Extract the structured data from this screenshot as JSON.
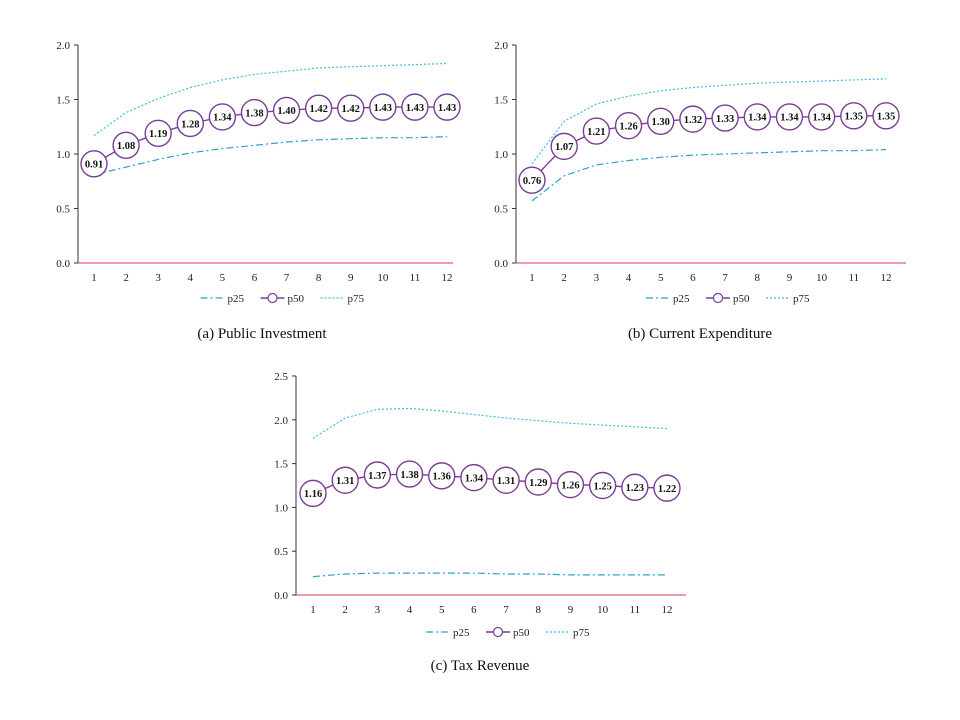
{
  "chart_data": [
    {
      "type": "line",
      "caption": "(a)  Public Investment",
      "x": [
        1,
        2,
        3,
        4,
        5,
        6,
        7,
        8,
        9,
        10,
        11,
        12
      ],
      "ylim": [
        0,
        2
      ],
      "yticks": [
        "0.0",
        "0.5",
        "1.0",
        "1.5",
        "2.0"
      ],
      "grid": false,
      "legend_position": "bottom",
      "series": [
        {
          "name": "p25",
          "style": "dash-dot",
          "values": [
            0.81,
            0.88,
            0.95,
            1.01,
            1.05,
            1.08,
            1.11,
            1.13,
            1.14,
            1.15,
            1.15,
            1.16
          ]
        },
        {
          "name": "p50",
          "style": "circle-labeled",
          "values": [
            0.91,
            1.08,
            1.19,
            1.28,
            1.34,
            1.38,
            1.4,
            1.42,
            1.42,
            1.43,
            1.43,
            1.43
          ],
          "labels": [
            "0.91",
            "1.08",
            "1.19",
            "1.28",
            "1.34",
            "1.38",
            "1.40",
            "1.42",
            "1.42",
            "1.43",
            "1.43",
            "1.43"
          ]
        },
        {
          "name": "p75",
          "style": "dotted",
          "values": [
            1.17,
            1.38,
            1.51,
            1.61,
            1.68,
            1.73,
            1.76,
            1.79,
            1.8,
            1.81,
            1.82,
            1.83
          ]
        }
      ]
    },
    {
      "type": "line",
      "caption": "(b)  Current Expenditure",
      "x": [
        1,
        2,
        3,
        4,
        5,
        6,
        7,
        8,
        9,
        10,
        11,
        12
      ],
      "ylim": [
        0,
        2
      ],
      "yticks": [
        "0.0",
        "0.5",
        "1.0",
        "1.5",
        "2.0"
      ],
      "grid": false,
      "legend_position": "bottom",
      "series": [
        {
          "name": "p25",
          "style": "dash-dot",
          "values": [
            0.57,
            0.8,
            0.9,
            0.94,
            0.97,
            0.99,
            1.0,
            1.01,
            1.02,
            1.03,
            1.03,
            1.04
          ]
        },
        {
          "name": "p50",
          "style": "circle-labeled",
          "values": [
            0.76,
            1.07,
            1.21,
            1.26,
            1.3,
            1.32,
            1.33,
            1.34,
            1.34,
            1.34,
            1.35,
            1.35
          ],
          "labels": [
            "0.76",
            "1.07",
            "1.21",
            "1.26",
            "1.30",
            "1.32",
            "1.33",
            "1.34",
            "1.34",
            "1.34",
            "1.35",
            "1.35"
          ]
        },
        {
          "name": "p75",
          "style": "dotted",
          "values": [
            0.91,
            1.3,
            1.46,
            1.53,
            1.58,
            1.61,
            1.63,
            1.65,
            1.66,
            1.67,
            1.68,
            1.69
          ]
        }
      ]
    },
    {
      "type": "line",
      "caption": "(c)  Tax Revenue",
      "x": [
        1,
        2,
        3,
        4,
        5,
        6,
        7,
        8,
        9,
        10,
        11,
        12
      ],
      "ylim": [
        0,
        2.5
      ],
      "yticks": [
        "0.0",
        "0.5",
        "1.0",
        "1.5",
        "2.0",
        "2.5"
      ],
      "grid": false,
      "legend_position": "bottom",
      "series": [
        {
          "name": "p25",
          "style": "dash-dot",
          "values": [
            0.21,
            0.24,
            0.25,
            0.25,
            0.25,
            0.25,
            0.24,
            0.24,
            0.23,
            0.23,
            0.23,
            0.23
          ]
        },
        {
          "name": "p50",
          "style": "circle-labeled",
          "values": [
            1.16,
            1.31,
            1.37,
            1.38,
            1.36,
            1.34,
            1.31,
            1.29,
            1.26,
            1.25,
            1.23,
            1.22
          ],
          "labels": [
            "1.16",
            "1.31",
            "1.37",
            "1.38",
            "1.36",
            "1.34",
            "1.31",
            "1.29",
            "1.26",
            "1.25",
            "1.23",
            "1.22"
          ]
        },
        {
          "name": "p75",
          "style": "dotted",
          "values": [
            1.79,
            2.02,
            2.12,
            2.13,
            2.1,
            2.06,
            2.02,
            1.99,
            1.96,
            1.94,
            1.92,
            1.9
          ]
        }
      ]
    }
  ],
  "colors": {
    "p25": "#2aa5c9",
    "p50_line": "#7a3d95",
    "p50_marker_edge": "#7a3d95",
    "p50_marker_fill": "#ffffff",
    "p75": "#3fbfe0",
    "x_axis": "#e06070",
    "y_axis": "#333333",
    "text": "#222222"
  }
}
